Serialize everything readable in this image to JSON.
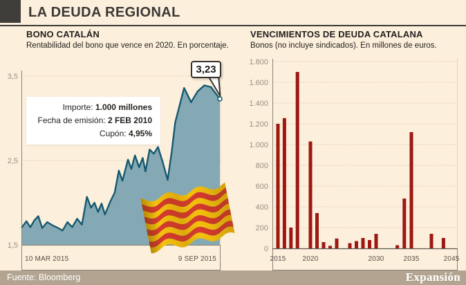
{
  "header": {
    "title": "LA DEUDA REGIONAL"
  },
  "footer": {
    "source": "Fuente: Bloomberg",
    "brand": "Expansión"
  },
  "colors": {
    "background": "#fcefdc",
    "accent_dark": "#3a3835",
    "area_fill": "#84a9b5",
    "line": "#15596f",
    "bar": "#9d1812",
    "grid": "#d8c3a3",
    "footer_bg": "#b2a491",
    "flag_yellow": "#f8c30d",
    "flag_red": "#d8392f"
  },
  "chart_data": [
    {
      "type": "area",
      "title": "BONO CATALÁN",
      "subtitle": "Rentabilidad del bono que vence en 2020. En porcentaje.",
      "ylabel": "porcentaje",
      "ylim": [
        1.5,
        3.5
      ],
      "yticks": [
        {
          "value": 3.5,
          "label": "3,5"
        },
        {
          "value": 2.5,
          "label": "2,5"
        },
        {
          "value": 1.5,
          "label": "1,5"
        }
      ],
      "grid": "dotted",
      "x_start_label": "10 MAR 2015",
      "x_end_label": "9 SEP 2015",
      "end_value": 3.23,
      "end_label": "3,23",
      "annotation": {
        "rows": [
          {
            "label": "Importe:",
            "value": "1.000 millones"
          },
          {
            "label": "Fecha de emisión:",
            "value": "2 FEB 2010"
          },
          {
            "label": "Cupón:",
            "value": "4,95%"
          }
        ]
      },
      "series": [
        [
          0.0,
          1.7
        ],
        [
          0.025,
          1.78
        ],
        [
          0.045,
          1.71
        ],
        [
          0.065,
          1.79
        ],
        [
          0.085,
          1.84
        ],
        [
          0.105,
          1.7
        ],
        [
          0.13,
          1.77
        ],
        [
          0.158,
          1.73
        ],
        [
          0.185,
          1.7
        ],
        [
          0.207,
          1.67
        ],
        [
          0.232,
          1.77
        ],
        [
          0.256,
          1.71
        ],
        [
          0.281,
          1.81
        ],
        [
          0.305,
          1.74
        ],
        [
          0.33,
          2.07
        ],
        [
          0.351,
          1.94
        ],
        [
          0.368,
          2.0
        ],
        [
          0.386,
          1.89
        ],
        [
          0.404,
          1.99
        ],
        [
          0.421,
          1.86
        ],
        [
          0.449,
          2.02
        ],
        [
          0.47,
          2.12
        ],
        [
          0.491,
          2.38
        ],
        [
          0.509,
          2.26
        ],
        [
          0.537,
          2.51
        ],
        [
          0.554,
          2.4
        ],
        [
          0.572,
          2.56
        ],
        [
          0.593,
          2.42
        ],
        [
          0.611,
          2.53
        ],
        [
          0.625,
          2.37
        ],
        [
          0.646,
          2.63
        ],
        [
          0.667,
          2.58
        ],
        [
          0.688,
          2.66
        ],
        [
          0.712,
          2.48
        ],
        [
          0.737,
          2.27
        ],
        [
          0.757,
          2.6
        ],
        [
          0.775,
          2.95
        ],
        [
          0.82,
          3.36
        ],
        [
          0.855,
          3.19
        ],
        [
          0.888,
          3.32
        ],
        [
          0.922,
          3.39
        ],
        [
          0.955,
          3.37
        ],
        [
          1.0,
          3.23
        ]
      ]
    },
    {
      "type": "bar",
      "title": "VENCIMIENTOS DE DEUDA CATALANA",
      "subtitle": "Bonos (no incluye sindicados). En millones de euros.",
      "ylabel": "millones de euros",
      "ylim": [
        0,
        1800
      ],
      "ytick_step": 200,
      "ytick_labels": [
        "1.800",
        "1.600",
        "1.400",
        "1.200",
        "1.000",
        "800",
        "600",
        "400",
        "200",
        "0"
      ],
      "grid": "dotted",
      "xticks": [
        2015,
        2020,
        2030,
        2035,
        2045
      ],
      "bars": [
        {
          "year": 2015,
          "value": 1200
        },
        {
          "year": 2016,
          "value": 1255
        },
        {
          "year": 2017,
          "value": 200
        },
        {
          "year": 2018,
          "value": 1700
        },
        {
          "year": 2020,
          "value": 1030
        },
        {
          "year": 2021,
          "value": 340
        },
        {
          "year": 2022,
          "value": 60
        },
        {
          "year": 2023,
          "value": 25
        },
        {
          "year": 2024,
          "value": 95
        },
        {
          "year": 2026,
          "value": 50
        },
        {
          "year": 2027,
          "value": 70
        },
        {
          "year": 2028,
          "value": 100
        },
        {
          "year": 2029,
          "value": 80
        },
        {
          "year": 2030,
          "value": 140
        },
        {
          "year": 2033,
          "value": 30
        },
        {
          "year": 2034,
          "value": 480
        },
        {
          "year": 2035,
          "value": 1120
        },
        {
          "year": 2040,
          "value": 140
        },
        {
          "year": 2043,
          "value": 100
        }
      ]
    }
  ]
}
